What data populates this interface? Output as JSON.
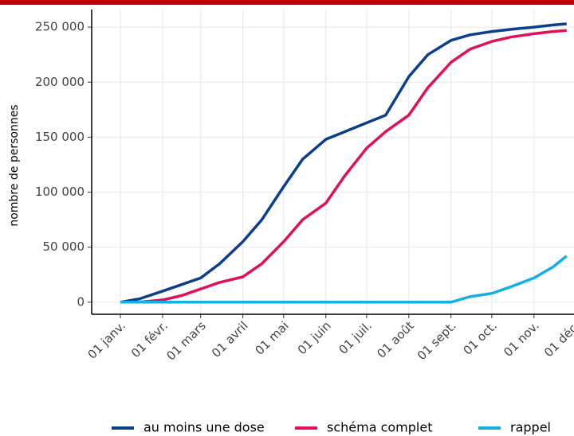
{
  "chart_data": {
    "type": "line",
    "y_label": "nombre de personnes",
    "x": [
      "01-01",
      "01-15",
      "02-01",
      "02-15",
      "03-01",
      "03-15",
      "04-01",
      "04-15",
      "05-01",
      "05-15",
      "06-01",
      "06-15",
      "07-01",
      "07-15",
      "08-01",
      "08-15",
      "09-01",
      "09-15",
      "10-01",
      "10-15",
      "11-01",
      "11-15",
      "11-25"
    ],
    "series": [
      {
        "name": "au moins une dose",
        "color": "#0b3f8c",
        "values": [
          0,
          3000,
          10000,
          16000,
          22000,
          35000,
          55000,
          75000,
          105000,
          130000,
          148000,
          155000,
          163000,
          170000,
          205000,
          225000,
          238000,
          243000,
          246000,
          248000,
          250000,
          252000,
          253000
        ]
      },
      {
        "name": "schéma complet",
        "color": "#e0105a",
        "values": [
          0,
          0,
          2000,
          6000,
          12000,
          18000,
          23000,
          35000,
          55000,
          75000,
          90000,
          115000,
          140000,
          155000,
          170000,
          195000,
          218000,
          230000,
          237000,
          241000,
          244000,
          246000,
          247000
        ]
      },
      {
        "name": "rappel",
        "color": "#15b0e3",
        "values": [
          0,
          0,
          0,
          0,
          0,
          0,
          0,
          0,
          0,
          0,
          0,
          0,
          0,
          0,
          0,
          0,
          0,
          5000,
          8000,
          14000,
          22000,
          32000,
          42000
        ]
      }
    ],
    "xlim": [
      "01-01",
      "12-01"
    ],
    "xticks": [
      {
        "value": "01-01",
        "label": "01 janv."
      },
      {
        "value": "02-01",
        "label": "01 févr."
      },
      {
        "value": "03-01",
        "label": "01 mars"
      },
      {
        "value": "04-01",
        "label": "01 avril"
      },
      {
        "value": "05-01",
        "label": "01 mai"
      },
      {
        "value": "06-01",
        "label": "01 juin"
      },
      {
        "value": "07-01",
        "label": "01 juil."
      },
      {
        "value": "08-01",
        "label": "01 août"
      },
      {
        "value": "09-01",
        "label": "01 sept."
      },
      {
        "value": "10-01",
        "label": "01 oct."
      },
      {
        "value": "11-01",
        "label": "01 nov."
      },
      {
        "value": "12-01",
        "label": "01 déc."
      }
    ],
    "ylim": [
      -11000,
      266000
    ],
    "yticks": [
      0,
      {
        "value": 50000,
        "label": "50 000"
      },
      {
        "value": 100000,
        "label": "100 000"
      },
      {
        "value": 150000,
        "label": "150 000"
      },
      {
        "value": 200000,
        "label": "200 000"
      },
      {
        "value": 250000,
        "label": "250 000"
      }
    ],
    "grid": true,
    "legend": "bottom"
  }
}
